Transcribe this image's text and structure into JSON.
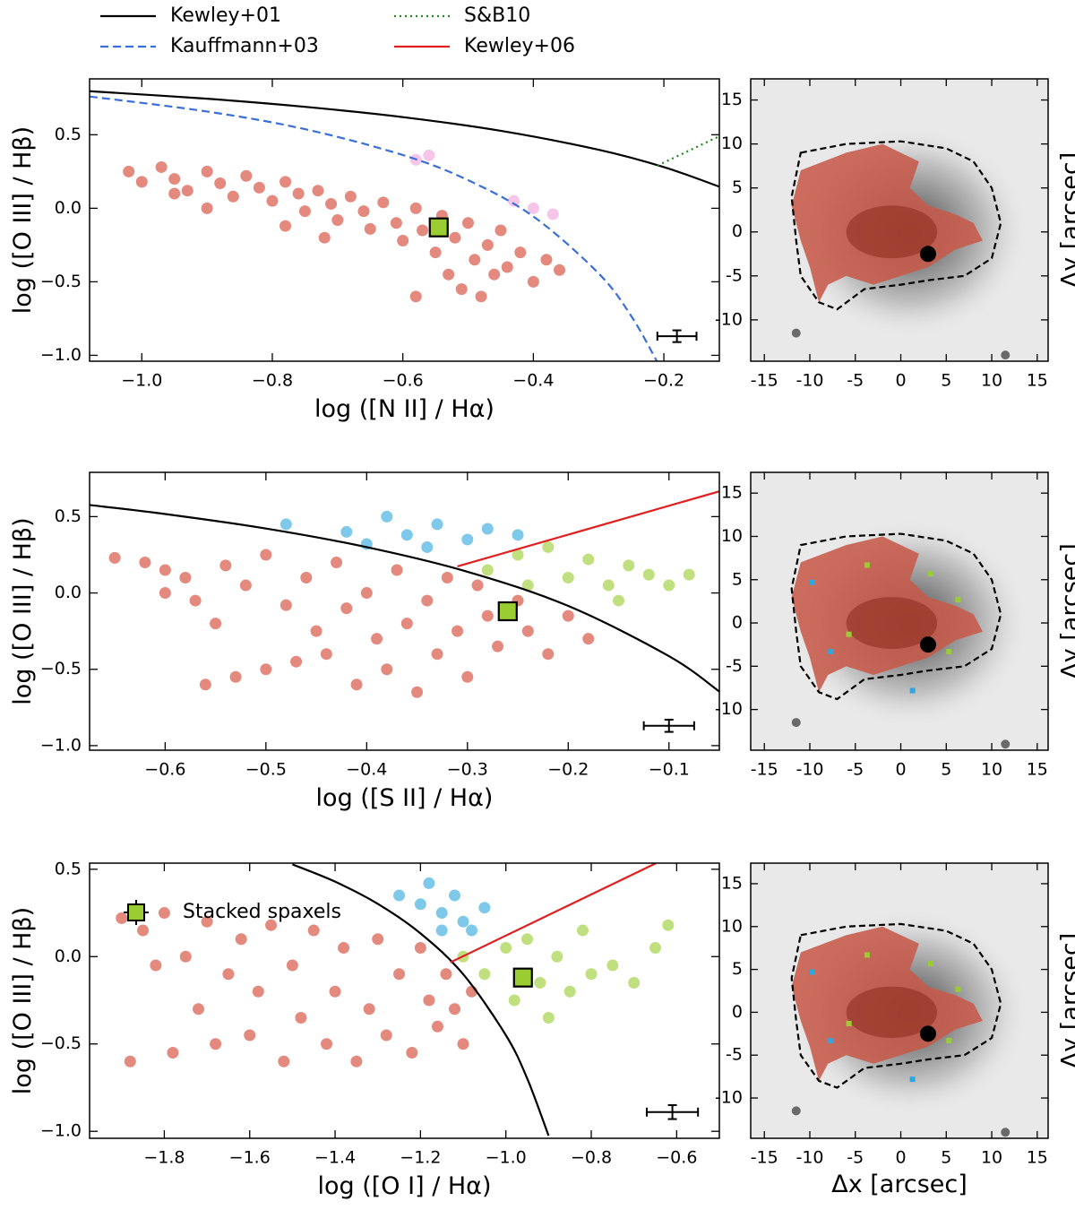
{
  "chart_data": [
    {
      "type": "scatter",
      "xlabel": "log ([N II] / Hα)",
      "ylabel": "log ([O III] / Hβ)",
      "xlim": [
        -1.08,
        -0.115
      ],
      "ylim": [
        -1.04,
        0.88
      ],
      "xticks": [
        {
          "value": -1.0,
          "label": "−1.0"
        },
        {
          "value": -0.8,
          "label": "−0.8"
        },
        {
          "value": -0.6,
          "label": "−0.6"
        },
        {
          "value": -0.4,
          "label": "−0.4"
        },
        {
          "value": -0.2,
          "label": "−0.2"
        }
      ],
      "yticks": [
        0.5,
        {
          "value": 0,
          "label": "0.0"
        },
        {
          "value": -0.5,
          "label": "−0.5"
        },
        {
          "value": -1.0,
          "label": "−1.0"
        }
      ],
      "series": [
        {
          "color": "#d4412f",
          "x": [
            -1.02,
            -1.0,
            -0.97,
            -0.95,
            -0.93,
            -0.9,
            -0.88,
            -0.86,
            -0.84,
            -0.82,
            -0.8,
            -0.78,
            -0.76,
            -0.75,
            -0.73,
            -0.71,
            -0.7,
            -0.68,
            -0.66,
            -0.65,
            -0.63,
            -0.61,
            -0.6,
            -0.58,
            -0.57,
            -0.55,
            -0.54,
            -0.53,
            -0.52,
            -0.51,
            -0.5,
            -0.49,
            -0.48,
            -0.47,
            -0.46,
            -0.45,
            -0.44,
            -0.42,
            -0.4,
            -0.38,
            -0.36,
            -0.78,
            -0.72,
            -0.9,
            -0.95,
            -0.58
          ],
          "y": [
            0.25,
            0.18,
            0.28,
            0.2,
            0.12,
            0.25,
            0.17,
            0.08,
            0.22,
            0.14,
            0.05,
            0.18,
            0.1,
            -0.02,
            0.12,
            0.03,
            -0.08,
            0.08,
            -0.02,
            -0.14,
            0.04,
            -0.1,
            -0.22,
            0.0,
            -0.15,
            -0.3,
            -0.05,
            -0.45,
            -0.2,
            -0.55,
            -0.1,
            -0.35,
            -0.6,
            -0.25,
            -0.45,
            -0.15,
            -0.4,
            -0.3,
            -0.5,
            -0.35,
            -0.42,
            -0.12,
            -0.2,
            0.0,
            0.1,
            -0.6
          ]
        },
        {
          "color": "#f2a2dc",
          "x": [
            -0.58,
            -0.56,
            -0.43,
            -0.4,
            -0.37
          ],
          "y": [
            0.33,
            0.36,
            0.05,
            0.0,
            -0.04
          ]
        }
      ],
      "lines": [
        {
          "name": "Kewley+01",
          "color": "#000000",
          "dash": "solid",
          "x": [
            -1.08,
            -0.9,
            -0.75,
            -0.6,
            -0.45,
            -0.3,
            -0.2,
            -0.115
          ],
          "y": [
            0.796,
            0.745,
            0.69,
            0.62,
            0.527,
            0.398,
            0.28,
            0.147
          ]
        },
        {
          "name": "Kauffmann+03",
          "color": "#3a6fd8",
          "dash": "dashed",
          "x": [
            -1.08,
            -0.9,
            -0.75,
            -0.6,
            -0.5,
            -0.4,
            -0.3,
            -0.25,
            -0.21
          ],
          "y": [
            0.76,
            0.658,
            0.538,
            0.362,
            0.191,
            -0.056,
            -0.443,
            -0.733,
            -1.046
          ]
        },
        {
          "name": "S&B10",
          "color": "#1f8a1f",
          "dash": "dotted",
          "x": [
            -0.21,
            -0.115
          ],
          "y": [
            0.29,
            0.49
          ]
        }
      ],
      "stacked": {
        "x": -0.545,
        "y": -0.13,
        "color": "#9acd32"
      },
      "error_bar": {
        "x": -0.18,
        "y": -0.87,
        "xerr": 0.03,
        "yerr": 0.04
      }
    },
    {
      "type": "scatter",
      "xlabel": "log ([S II] / Hα)",
      "ylabel": "log ([O III] / Hβ)",
      "xlim": [
        -0.675,
        -0.05
      ],
      "ylim": [
        -1.03,
        0.79
      ],
      "xticks": [
        {
          "value": -0.6,
          "label": "−0.6"
        },
        {
          "value": -0.5,
          "label": "−0.5"
        },
        {
          "value": -0.4,
          "label": "−0.4"
        },
        {
          "value": -0.3,
          "label": "−0.3"
        },
        {
          "value": -0.2,
          "label": "−0.2"
        },
        {
          "value": -0.1,
          "label": "−0.1"
        }
      ],
      "yticks": [
        0.5,
        {
          "value": 0,
          "label": "0.0"
        },
        {
          "value": -0.5,
          "label": "−0.5"
        },
        {
          "value": -1.0,
          "label": "−1.0"
        }
      ],
      "series": [
        {
          "color": "#d4412f",
          "x": [
            -0.65,
            -0.62,
            -0.6,
            -0.58,
            -0.57,
            -0.56,
            -0.54,
            -0.53,
            -0.52,
            -0.5,
            -0.5,
            -0.48,
            -0.47,
            -0.46,
            -0.45,
            -0.44,
            -0.43,
            -0.42,
            -0.41,
            -0.4,
            -0.39,
            -0.38,
            -0.37,
            -0.36,
            -0.35,
            -0.34,
            -0.33,
            -0.32,
            -0.31,
            -0.3,
            -0.29,
            -0.28,
            -0.27,
            -0.25,
            -0.24,
            -0.22,
            -0.2,
            -0.18,
            -0.55,
            -0.6
          ],
          "y": [
            0.23,
            0.2,
            0.15,
            0.1,
            -0.05,
            -0.6,
            0.18,
            -0.55,
            0.05,
            -0.5,
            0.25,
            -0.08,
            -0.45,
            0.1,
            -0.25,
            -0.4,
            0.2,
            -0.1,
            -0.6,
            0.0,
            -0.3,
            -0.5,
            0.15,
            -0.2,
            -0.65,
            -0.05,
            -0.4,
            0.1,
            -0.25,
            -0.55,
            0.05,
            -0.15,
            -0.35,
            -0.05,
            -0.25,
            -0.4,
            -0.15,
            -0.3,
            -0.2,
            0.0
          ]
        },
        {
          "color": "#2fa7dc",
          "x": [
            -0.48,
            -0.42,
            -0.38,
            -0.36,
            -0.33,
            -0.3,
            -0.28,
            -0.25,
            -0.4,
            -0.34
          ],
          "y": [
            0.45,
            0.4,
            0.5,
            0.38,
            0.45,
            0.35,
            0.42,
            0.38,
            0.32,
            0.3
          ]
        },
        {
          "color": "#9acd32",
          "x": [
            -0.28,
            -0.25,
            -0.22,
            -0.2,
            -0.18,
            -0.16,
            -0.14,
            -0.12,
            -0.1,
            -0.08,
            -0.24,
            -0.15
          ],
          "y": [
            0.15,
            0.25,
            0.3,
            0.1,
            0.22,
            0.05,
            0.18,
            0.12,
            0.05,
            0.12,
            0.05,
            -0.05
          ]
        }
      ],
      "lines": [
        {
          "name": "Kewley+01",
          "color": "#000000",
          "dash": "solid",
          "x": [
            -0.675,
            -0.6,
            -0.5,
            -0.4,
            -0.3,
            -0.2,
            -0.1,
            -0.05
          ],
          "y": [
            0.576,
            0.517,
            0.422,
            0.3,
            0.139,
            -0.085,
            -0.414,
            -0.646
          ]
        },
        {
          "name": "Kewley+06",
          "color": "#e02020",
          "dash": "solid",
          "x": [
            -0.31,
            -0.05
          ],
          "y": [
            0.174,
            0.6655
          ]
        }
      ],
      "stacked": {
        "x": -0.26,
        "y": -0.12,
        "color": "#9acd32"
      },
      "error_bar": {
        "x": -0.1,
        "y": -0.87,
        "xerr": 0.025,
        "yerr": 0.04
      }
    },
    {
      "type": "scatter",
      "xlabel": "log ([O I] / Hα)",
      "ylabel": "log ([O III] / Hβ)",
      "xlim": [
        -1.975,
        -0.5
      ],
      "ylim": [
        -1.04,
        0.535
      ],
      "xticks": [
        {
          "value": -1.8,
          "label": "−1.8"
        },
        {
          "value": -1.6,
          "label": "−1.6"
        },
        {
          "value": -1.4,
          "label": "−1.4"
        },
        {
          "value": -1.2,
          "label": "−1.2"
        },
        {
          "value": -1.0,
          "label": "−1.0"
        },
        {
          "value": -0.8,
          "label": "−0.8"
        },
        {
          "value": -0.6,
          "label": "−0.6"
        }
      ],
      "yticks": [
        0.5,
        {
          "value": 0,
          "label": "0.0"
        },
        {
          "value": -0.5,
          "label": "−0.5"
        },
        {
          "value": -1.0,
          "label": "−1.0"
        }
      ],
      "series": [
        {
          "color": "#d4412f",
          "x": [
            -1.9,
            -1.88,
            -1.85,
            -1.82,
            -1.8,
            -1.78,
            -1.75,
            -1.72,
            -1.7,
            -1.68,
            -1.65,
            -1.62,
            -1.6,
            -1.58,
            -1.55,
            -1.52,
            -1.5,
            -1.48,
            -1.45,
            -1.42,
            -1.4,
            -1.38,
            -1.35,
            -1.32,
            -1.3,
            -1.28,
            -1.25,
            -1.22,
            -1.2,
            -1.18,
            -1.16,
            -1.14,
            -1.12,
            -1.1,
            -1.08
          ],
          "y": [
            0.22,
            -0.6,
            0.15,
            -0.05,
            0.25,
            -0.55,
            0.0,
            -0.3,
            0.2,
            -0.5,
            -0.1,
            0.1,
            -0.45,
            -0.2,
            0.18,
            -0.6,
            -0.05,
            -0.35,
            0.15,
            -0.5,
            -0.2,
            0.05,
            -0.6,
            -0.3,
            0.1,
            -0.45,
            -0.1,
            -0.55,
            0.05,
            -0.25,
            -0.4,
            -0.1,
            -0.3,
            -0.5,
            -0.2
          ]
        },
        {
          "color": "#2fa7dc",
          "x": [
            -1.25,
            -1.2,
            -1.18,
            -1.15,
            -1.12,
            -1.1,
            -1.08,
            -1.05,
            -1.15
          ],
          "y": [
            0.35,
            0.3,
            0.42,
            0.25,
            0.35,
            0.2,
            0.15,
            0.28,
            0.15
          ]
        },
        {
          "color": "#9acd32",
          "x": [
            -1.1,
            -1.05,
            -1.0,
            -0.98,
            -0.95,
            -0.92,
            -0.9,
            -0.88,
            -0.85,
            -0.82,
            -0.8,
            -0.75,
            -0.7,
            -0.65,
            -0.62
          ],
          "y": [
            0.0,
            -0.1,
            0.05,
            -0.25,
            0.1,
            -0.15,
            -0.35,
            0.0,
            -0.2,
            0.15,
            -0.1,
            -0.05,
            -0.15,
            0.05,
            0.18
          ]
        }
      ],
      "lines": [
        {
          "name": "Kewley+01",
          "color": "#000000",
          "dash": "solid",
          "x": [
            -1.5,
            -1.4,
            -1.3,
            -1.2,
            -1.1,
            -1.0,
            -0.95,
            -0.9
          ],
          "y": [
            0.528,
            0.429,
            0.302,
            0.133,
            -0.101,
            -0.45,
            -0.698,
            -1.025
          ]
        },
        {
          "name": "Kewley+06",
          "color": "#e02020",
          "dash": "solid",
          "x": [
            -1.13,
            -0.648
          ],
          "y": [
            -0.033,
            0.535
          ]
        }
      ],
      "stacked": {
        "x": -0.96,
        "y": -0.12,
        "color": "#9acd32",
        "label": "Stacked spaxels"
      },
      "error_bar": {
        "x": -0.61,
        "y": -0.89,
        "xerr": 0.06,
        "yerr": 0.04
      }
    },
    {
      "type": "image",
      "ylabel": "Δy [arcsec]",
      "xlim": [
        -16.5,
        16.2
      ],
      "ylim": [
        -14.7,
        17.4
      ],
      "xticks": [
        -15,
        -10,
        -5,
        0,
        5,
        10,
        15
      ],
      "yticks": [
        15,
        10,
        5,
        0,
        -5,
        -10
      ]
    },
    {
      "type": "image",
      "ylabel": "Δy [arcsec]",
      "xlim": [
        -16.5,
        16.2
      ],
      "ylim": [
        -14.7,
        17.4
      ],
      "xticks": [
        -15,
        -10,
        -5,
        0,
        5,
        10,
        15
      ],
      "yticks": [
        15,
        10,
        5,
        0,
        -5,
        -10
      ]
    },
    {
      "type": "image",
      "ylabel": "Δy [arcsec]",
      "xlabel": "Δx [arcsec]",
      "xlim": [
        -16.5,
        16.2
      ],
      "ylim": [
        -14.7,
        17.4
      ],
      "xticks": [
        -15,
        -10,
        -5,
        0,
        5,
        10,
        15
      ],
      "yticks": [
        15,
        10,
        5,
        0,
        -5,
        -10
      ]
    }
  ]
}
